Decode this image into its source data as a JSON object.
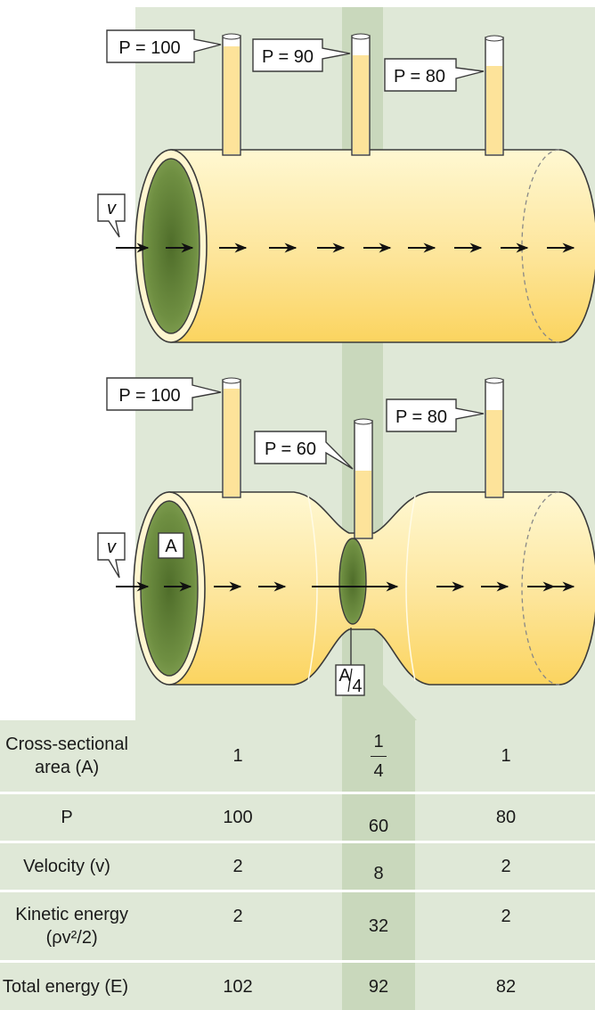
{
  "colors": {
    "panel": "#dfe8d7",
    "column": "#c9d8bc",
    "tube_light": "#fff7cf",
    "tube_mid": "#fde9a0",
    "tube_dark": "#f9d057",
    "opening": "#6a8a3e",
    "outline": "#3a3a3a"
  },
  "top_diagram": {
    "pressure_labels": [
      "P = 100",
      "P = 90",
      "P = 80"
    ],
    "velocity_label": "v"
  },
  "bottom_diagram": {
    "pressure_labels": [
      "P = 100",
      "P = 60",
      "P = 80"
    ],
    "velocity_label": "v",
    "area_label": "A",
    "area_quarter_num": "A",
    "area_quarter_den": "4"
  },
  "table": {
    "rows": [
      {
        "label_line1": "Cross-sectional",
        "label_line2": "area (A)",
        "c1": "1",
        "c2_num": "1",
        "c2_den": "4",
        "c3": "1"
      },
      {
        "label": "P",
        "c1": "100",
        "c2": "60",
        "c3": "80"
      },
      {
        "label": "Velocity (v)",
        "c1": "2",
        "c2": "8",
        "c3": "2"
      },
      {
        "label_line1": "Kinetic energy",
        "label_line2": "(ρv²/2)",
        "c1": "2",
        "c2": "32",
        "c3": "2"
      },
      {
        "label": "Total energy (E)",
        "c1": "102",
        "c2": "92",
        "c3": "82"
      }
    ]
  }
}
